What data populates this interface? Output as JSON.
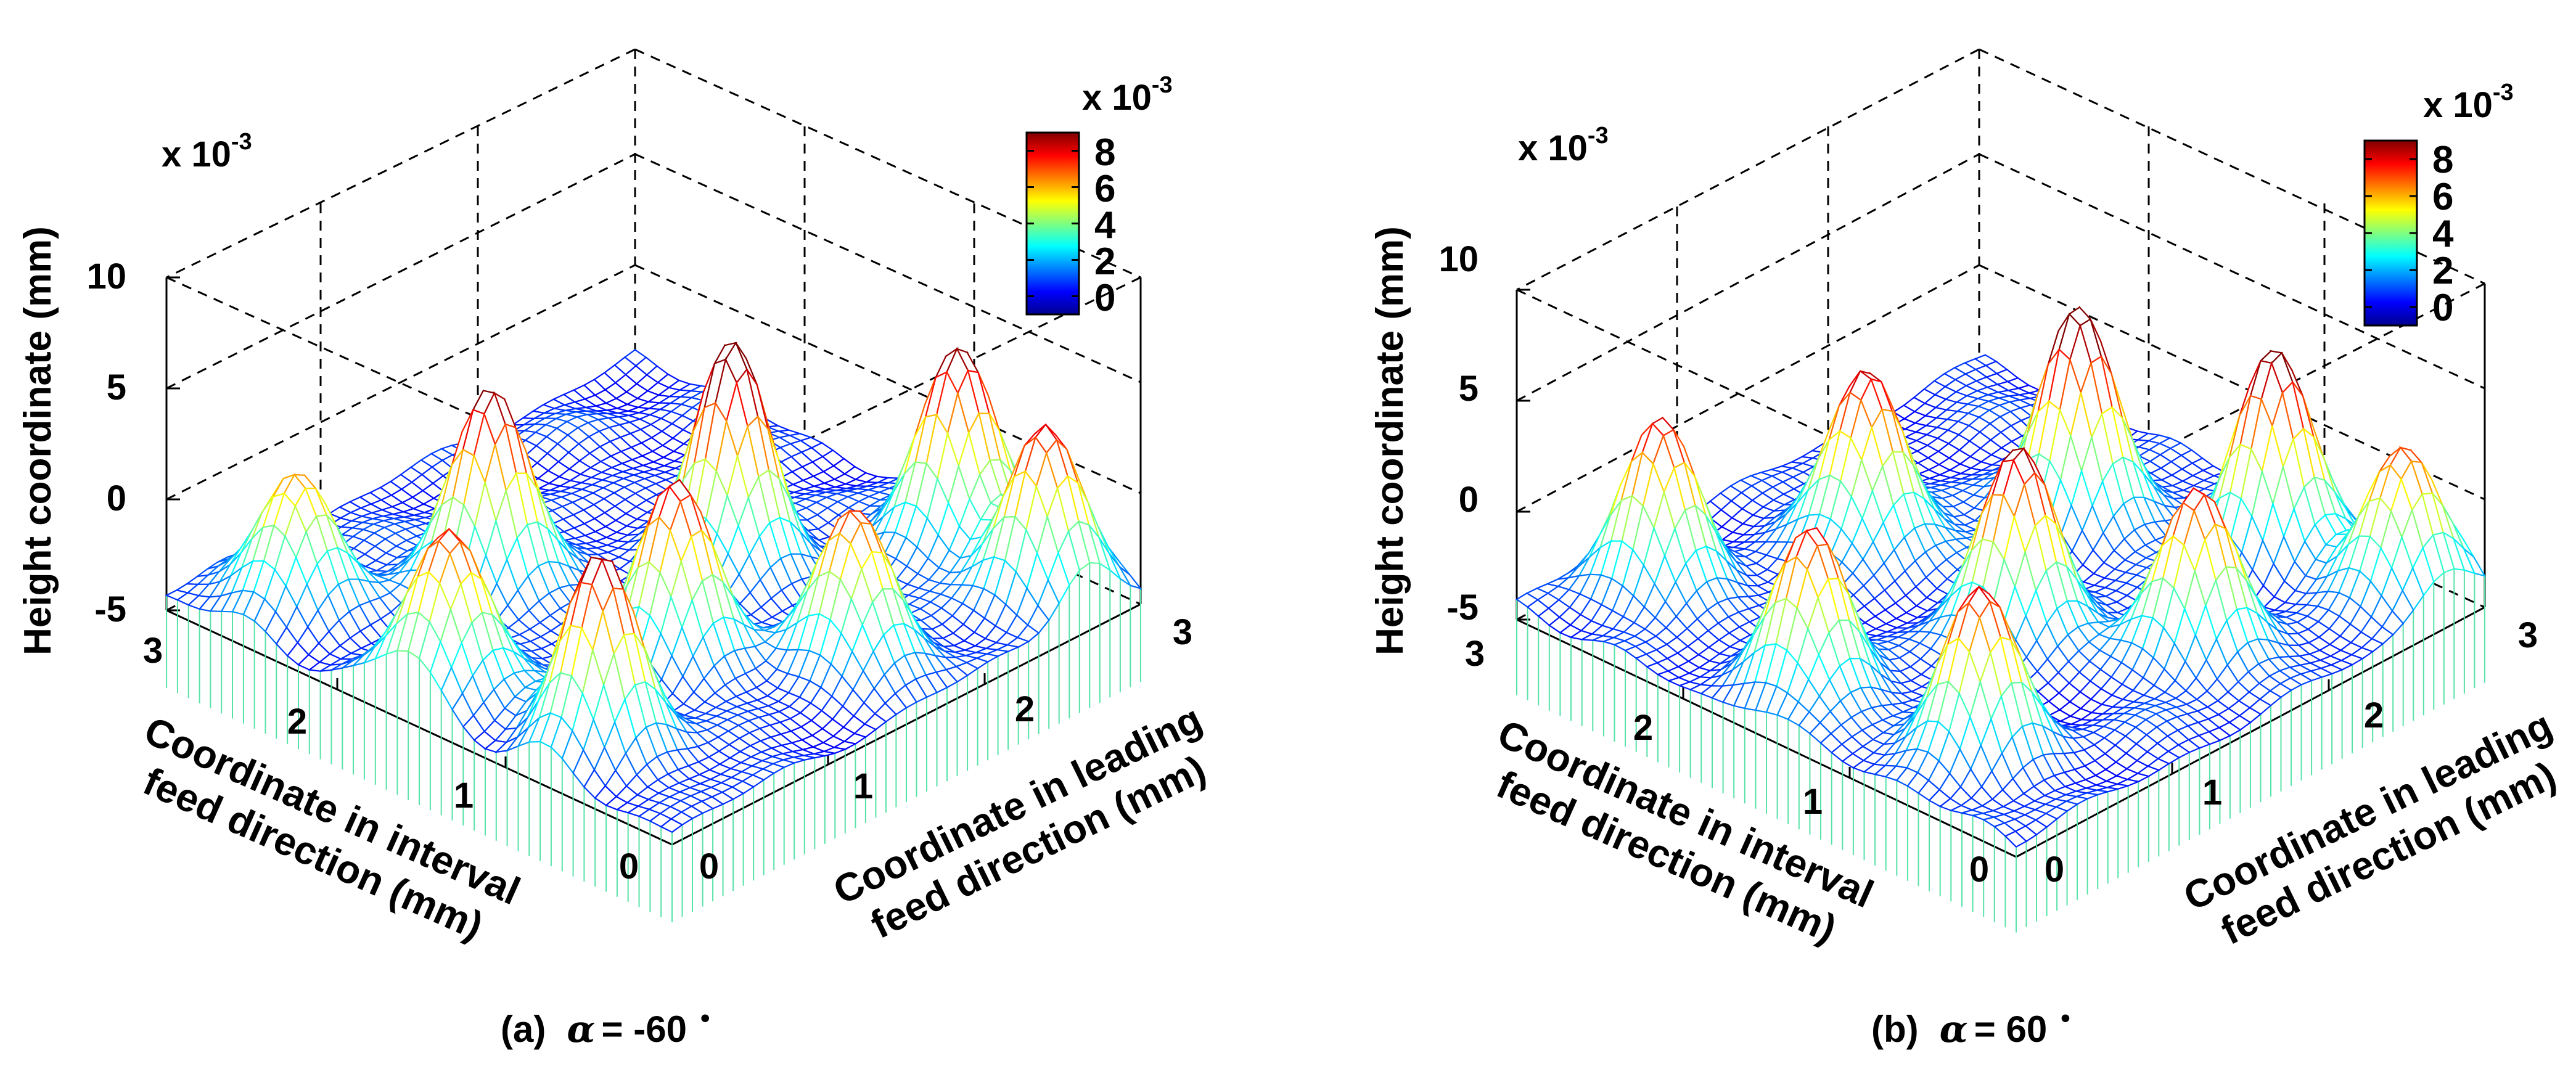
{
  "chart_data": [
    {
      "type": "surface3d",
      "panel_label": "(a)",
      "alpha_symbol": "α",
      "alpha_text": "= -60",
      "degree_symbol": "•",
      "zlabel": "Height coordinate (mm)",
      "xlabel": [
        "Coordinate in interval",
        "feed direction (mm)"
      ],
      "ylabel": [
        "Coordinate in leading",
        "feed direction (mm)"
      ],
      "zscale_label": "x 10",
      "zscale_exp": "-3",
      "z_ticks": [
        "10",
        "5",
        "0",
        "-5"
      ],
      "x_ticks": [
        "3",
        "2",
        "1",
        "0"
      ],
      "y_ticks": [
        "0",
        "1",
        "2",
        "3"
      ],
      "xlim": [
        0,
        3
      ],
      "ylim": [
        0,
        3
      ],
      "zlim": [
        -5,
        10
      ],
      "colorbar": {
        "scale_label": "x 10",
        "scale_exp": "-3",
        "ticks": [
          "8",
          "6",
          "4",
          "2",
          "0"
        ],
        "range": [
          -1,
          9
        ]
      },
      "peaks": [
        {
          "x": 2.55,
          "y": 0.35,
          "height": 6.0
        },
        {
          "x": 2.05,
          "y": 1.05,
          "height": 9.0
        },
        {
          "x": 1.55,
          "y": 0.25,
          "height": 7.5
        },
        {
          "x": 1.45,
          "y": 1.95,
          "height": 10.0
        },
        {
          "x": 1.05,
          "y": 1.15,
          "height": 8.0
        },
        {
          "x": 0.75,
          "y": 0.35,
          "height": 8.5
        },
        {
          "x": 0.85,
          "y": 2.75,
          "height": 9.0
        },
        {
          "x": 0.45,
          "y": 1.65,
          "height": 7.0
        },
        {
          "x": 0.25,
          "y": 2.65,
          "height": 7.5
        }
      ]
    },
    {
      "type": "surface3d",
      "panel_label": "(b)",
      "alpha_symbol": "α",
      "alpha_text": "= 60",
      "degree_symbol": "•",
      "zlabel": "Height coordinate (mm)",
      "xlabel": [
        "Coordinate in interval",
        "feed direction (mm)"
      ],
      "ylabel": [
        "Coordinate in leading",
        "feed direction (mm)"
      ],
      "zscale_label": "x 10",
      "zscale_exp": "-3",
      "z_ticks": [
        "10",
        "5",
        "0",
        "-5"
      ],
      "x_ticks": [
        "3",
        "2",
        "1",
        "0"
      ],
      "y_ticks": [
        "0",
        "1",
        "2",
        "3"
      ],
      "xlim": [
        0,
        3
      ],
      "ylim": [
        0,
        3
      ],
      "zlim": [
        -5,
        10
      ],
      "colorbar": {
        "scale_label": "x 10",
        "scale_exp": "-3",
        "ticks": [
          "8",
          "6",
          "4",
          "2",
          "0"
        ],
        "range": [
          -1,
          9
        ]
      },
      "peaks": [
        {
          "x": 2.65,
          "y": 0.55,
          "height": 7.5
        },
        {
          "x": 2.25,
          "y": 1.45,
          "height": 8.5
        },
        {
          "x": 1.55,
          "y": 0.35,
          "height": 7.5
        },
        {
          "x": 1.75,
          "y": 2.25,
          "height": 10.0
        },
        {
          "x": 1.25,
          "y": 1.35,
          "height": 8.5
        },
        {
          "x": 0.65,
          "y": 0.45,
          "height": 7.5
        },
        {
          "x": 0.95,
          "y": 2.65,
          "height": 9.0
        },
        {
          "x": 0.55,
          "y": 1.75,
          "height": 7.5
        },
        {
          "x": 0.25,
          "y": 2.75,
          "height": 7.0
        }
      ]
    }
  ]
}
